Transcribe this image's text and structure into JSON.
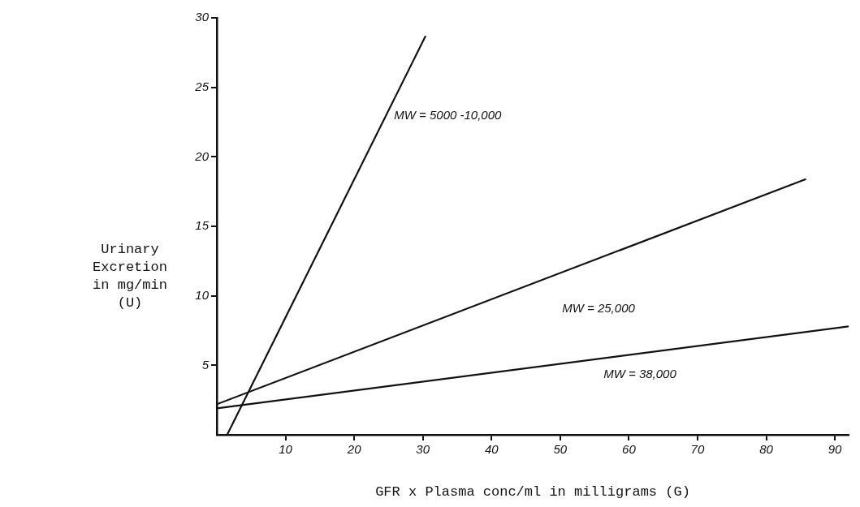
{
  "chart_data": {
    "type": "line",
    "xlabel": "GFR x Plasma conc/ml in milligrams (G)",
    "ylabel": "Urinary\nExcretion\nin mg/min\n(U)",
    "xlim": [
      0,
      92
    ],
    "xticks": [
      10,
      20,
      30,
      40,
      50,
      60,
      70,
      80,
      90
    ],
    "ylim": [
      0,
      30
    ],
    "yticks": [
      5,
      10,
      15,
      20,
      25,
      30
    ],
    "grid": false,
    "legend": false,
    "marker": "none",
    "line_style": "solid",
    "series": [
      {
        "name": "MW = 5000 -10,000",
        "color": "#111111",
        "x": [
          1.5,
          30.4
        ],
        "values": [
          0,
          28.7
        ]
      },
      {
        "name": "MW = 25,000",
        "color": "#111111",
        "x": [
          0,
          85.8
        ],
        "values": [
          2.2,
          18.4
        ]
      },
      {
        "name": "MW = 38,000",
        "color": "#111111",
        "x": [
          0,
          92
        ],
        "values": [
          1.9,
          7.8
        ]
      }
    ]
  }
}
